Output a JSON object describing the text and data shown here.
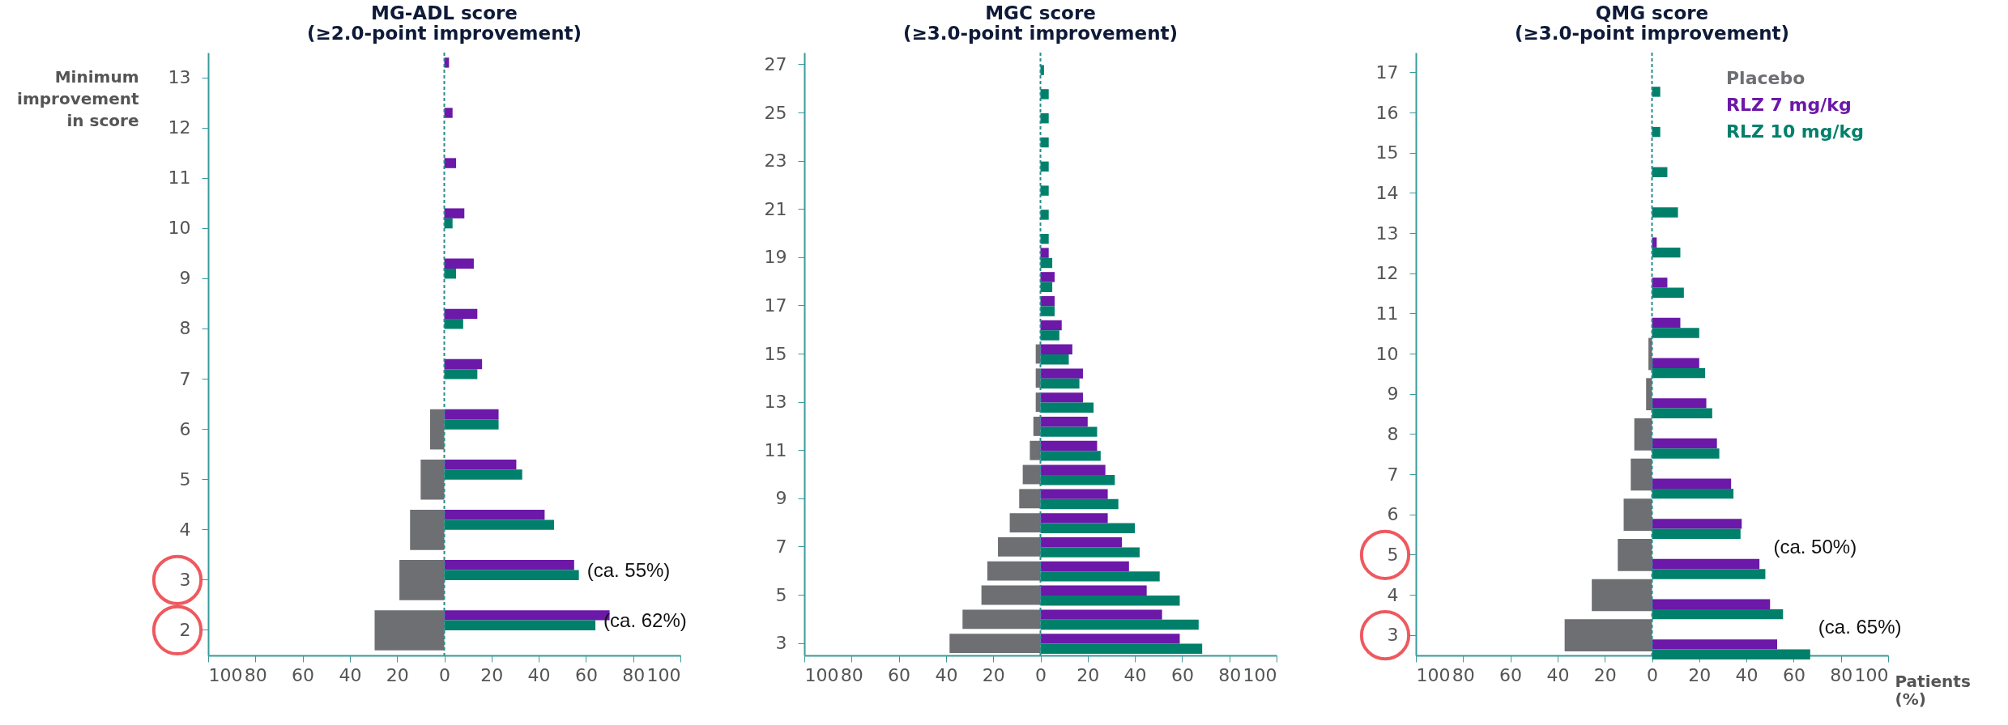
{
  "chart_data": [
    {
      "type": "bar",
      "orientation": "horizontal",
      "title": "MG-ADL score",
      "subtitle": "(≥2.0-point improvement)",
      "ylabel": "Minimum improvement in score",
      "categories": [
        "13",
        "12",
        "11",
        "10",
        "9",
        "8",
        "7",
        "6",
        "5",
        "4",
        "3",
        "2"
      ],
      "series": [
        {
          "color": "#6d6f73",
          "values": [
            null,
            null,
            null,
            null,
            null,
            null,
            null,
            -6,
            -10,
            -14.5,
            -19,
            -29.5
          ]
        },
        {
          "color": "#6c18a8",
          "values": [
            2,
            3.5,
            5,
            8.5,
            12.5,
            14,
            16,
            23,
            30.5,
            42.5,
            55,
            70
          ]
        },
        {
          "color": "#00806b",
          "values": [
            null,
            null,
            null,
            3.5,
            5,
            8,
            14,
            23,
            33,
            46.5,
            57,
            64
          ]
        }
      ],
      "xlim": [
        -100,
        100
      ],
      "xticks": [
        {
          "value": -100,
          "label": "100"
        },
        {
          "value": -80,
          "label": "80"
        },
        {
          "value": -60,
          "label": "60"
        },
        {
          "value": -40,
          "label": "40"
        },
        {
          "value": -20,
          "label": "20"
        },
        0,
        20,
        40,
        60,
        80,
        100
      ],
      "ref_lines": [
        {
          "axis": "x",
          "value": 0,
          "color": "#2a8c8c",
          "line_style": "dashed"
        }
      ],
      "annotations": [
        {
          "text": "(ca. 55%)",
          "x": 57,
          "y": "3"
        },
        {
          "text": "(ca. 62%)",
          "x": 64,
          "y": "2"
        }
      ]
    },
    {
      "type": "bar",
      "orientation": "horizontal",
      "title": "MGC score",
      "subtitle": "(≥3.0-point improvement)",
      "categories": [
        "27",
        null,
        "25",
        null,
        "23",
        null,
        "21",
        null,
        "19",
        null,
        "17",
        null,
        "15",
        null,
        "13",
        null,
        "11",
        null,
        "9",
        null,
        "7",
        null,
        "5",
        null,
        "3"
      ],
      "series": [
        {
          "color": "#6d6f73",
          "values": [
            null,
            null,
            null,
            null,
            null,
            null,
            null,
            null,
            null,
            null,
            null,
            null,
            -2,
            -2,
            -2,
            -3,
            -4.5,
            -7.5,
            -9,
            -13,
            -18,
            -22.5,
            -25,
            -33,
            -38.5
          ]
        },
        {
          "color": "#6c18a8",
          "values": [
            null,
            null,
            null,
            null,
            null,
            null,
            null,
            null,
            3.5,
            6,
            6,
            9,
            13.5,
            18,
            18,
            20,
            24,
            27.5,
            28.5,
            28.5,
            34.5,
            37.5,
            45,
            51.5,
            59
          ]
        },
        {
          "color": "#00806b",
          "values": [
            1.5,
            3.5,
            3.5,
            3.5,
            3.5,
            3.5,
            3.5,
            3.5,
            5,
            5,
            6,
            8,
            12,
            16.5,
            22.5,
            24,
            25.5,
            31.5,
            33,
            40,
            42,
            50.5,
            59,
            67,
            68.5
          ]
        }
      ],
      "xlim": [
        -100,
        100
      ],
      "xticks": [
        {
          "value": -100,
          "label": "100"
        },
        {
          "value": -80,
          "label": "80"
        },
        {
          "value": -60,
          "label": "60"
        },
        {
          "value": -40,
          "label": "40"
        },
        {
          "value": -20,
          "label": "20"
        },
        0,
        20,
        40,
        60,
        80,
        100
      ],
      "ref_lines": [
        {
          "axis": "x",
          "value": 0,
          "color": "#2a8c8c",
          "line_style": "dashed"
        }
      ]
    },
    {
      "type": "bar",
      "orientation": "horizontal",
      "title": "QMG score",
      "subtitle": "(≥3.0-point improvement)",
      "xlabel": "Patients (%)",
      "categories": [
        "17",
        "16",
        "15",
        "14",
        "13",
        "12",
        "11",
        "10",
        "9",
        "8",
        "7",
        "6",
        "5",
        "4",
        "3"
      ],
      "series": [
        {
          "name": "Placebo",
          "color": "#6d6f73",
          "values": [
            null,
            null,
            null,
            null,
            null,
            null,
            null,
            -1.5,
            -2.5,
            -7.5,
            -9,
            -12,
            -14.5,
            -25.5,
            -37
          ]
        },
        {
          "name": "RLZ 7 mg/kg",
          "color": "#6c18a8",
          "values": [
            null,
            null,
            null,
            null,
            2,
            6.5,
            12,
            20,
            23,
            27.5,
            33.5,
            38,
            45.5,
            50,
            53
          ]
        },
        {
          "name": "RLZ 10 mg/kg",
          "color": "#00806b",
          "values": [
            3.5,
            3.5,
            6.5,
            11,
            12,
            13.5,
            20,
            22.5,
            25.5,
            28.5,
            34.5,
            37.5,
            48,
            55.5,
            67
          ]
        }
      ],
      "xlim": [
        -100,
        100
      ],
      "xticks": [
        {
          "value": -100,
          "label": "100"
        },
        {
          "value": -80,
          "label": "80"
        },
        {
          "value": -60,
          "label": "60"
        },
        {
          "value": -40,
          "label": "40"
        },
        {
          "value": -20,
          "label": "20"
        },
        0,
        20,
        40,
        60,
        80,
        100
      ],
      "ref_lines": [
        {
          "axis": "x",
          "value": 0,
          "color": "#2a8c8c",
          "line_style": "dashed"
        }
      ],
      "annotations": [
        {
          "text": "(ca. 50%)",
          "x": 48,
          "y": "5"
        },
        {
          "text": "(ca. 65%)",
          "x": 67,
          "y": "3"
        }
      ]
    }
  ]
}
